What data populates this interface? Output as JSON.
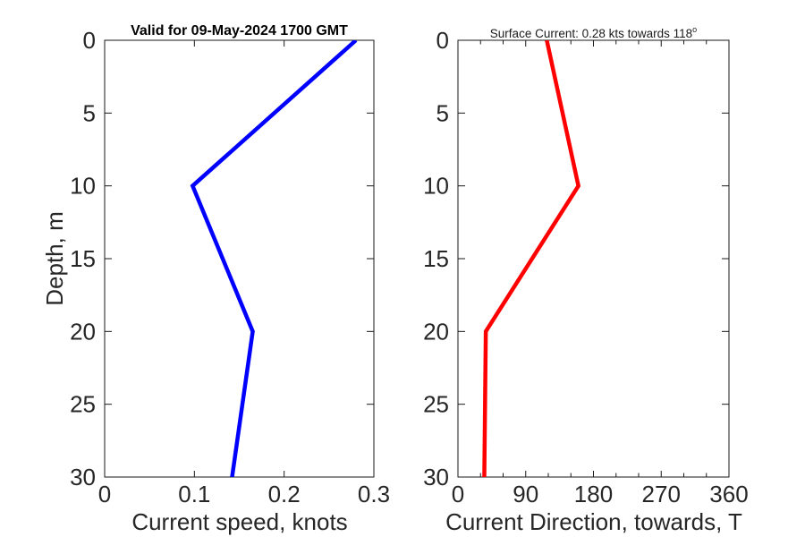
{
  "figure": {
    "background": "#ffffff",
    "left_plot_title": "Valid for 09-May-2024 1700 GMT",
    "right_plot_title_prefix": "Surface Current: 0.28 kts towards 118",
    "right_plot_title_sup": "o"
  },
  "colors": {
    "axis": "#1a1a1a",
    "tick_text": "#262626",
    "speed_line": "#0000ff",
    "direction_line": "#ff0000",
    "background": "#ffffff"
  },
  "chart_data": [
    {
      "type": "line",
      "title": "Valid for 09-May-2024 1700 GMT",
      "xlabel": "Current speed, knots",
      "ylabel": "Depth, m",
      "series": [
        {
          "name": "current-speed-profile",
          "x": [
            0.28,
            0.098,
            0.165,
            0.142
          ],
          "depth_m": [
            0,
            10,
            20,
            30
          ]
        }
      ],
      "xlim": [
        0,
        0.3
      ],
      "ylim": [
        0,
        30
      ],
      "y_axis_downward": true,
      "xticks": [
        0,
        0.1,
        0.2,
        0.3
      ],
      "xtick_labels": [
        "0",
        "0.1",
        "0.2",
        "0.3"
      ],
      "x_minor_ticks": [],
      "yticks": [
        0,
        5,
        10,
        15,
        20,
        25,
        30
      ],
      "ytick_labels": [
        "0",
        "5",
        "10",
        "15",
        "20",
        "25",
        "30"
      ],
      "grid": false,
      "line_color": "#0000ff",
      "line_width": 4.5
    },
    {
      "type": "line",
      "title": "Surface Current: 0.28 kts towards 118°",
      "xlabel": "Current Direction, towards, T",
      "ylabel": "",
      "series": [
        {
          "name": "current-direction-profile",
          "x": [
            118,
            160,
            37,
            35
          ],
          "depth_m": [
            0,
            10,
            20,
            30
          ]
        }
      ],
      "xlim": [
        0,
        360
      ],
      "ylim": [
        0,
        30
      ],
      "y_axis_downward": true,
      "xticks": [
        0,
        90,
        180,
        270,
        360
      ],
      "xtick_labels": [
        "0",
        "90",
        "180",
        "270",
        "360"
      ],
      "x_minor_ticks": [
        30,
        60,
        120,
        150,
        210,
        240,
        300,
        330
      ],
      "yticks": [
        0,
        5,
        10,
        15,
        20,
        25,
        30
      ],
      "ytick_labels": [
        "0",
        "5",
        "10",
        "15",
        "20",
        "25",
        "30"
      ],
      "grid": false,
      "line_color": "#ff0000",
      "line_width": 4.5
    }
  ]
}
